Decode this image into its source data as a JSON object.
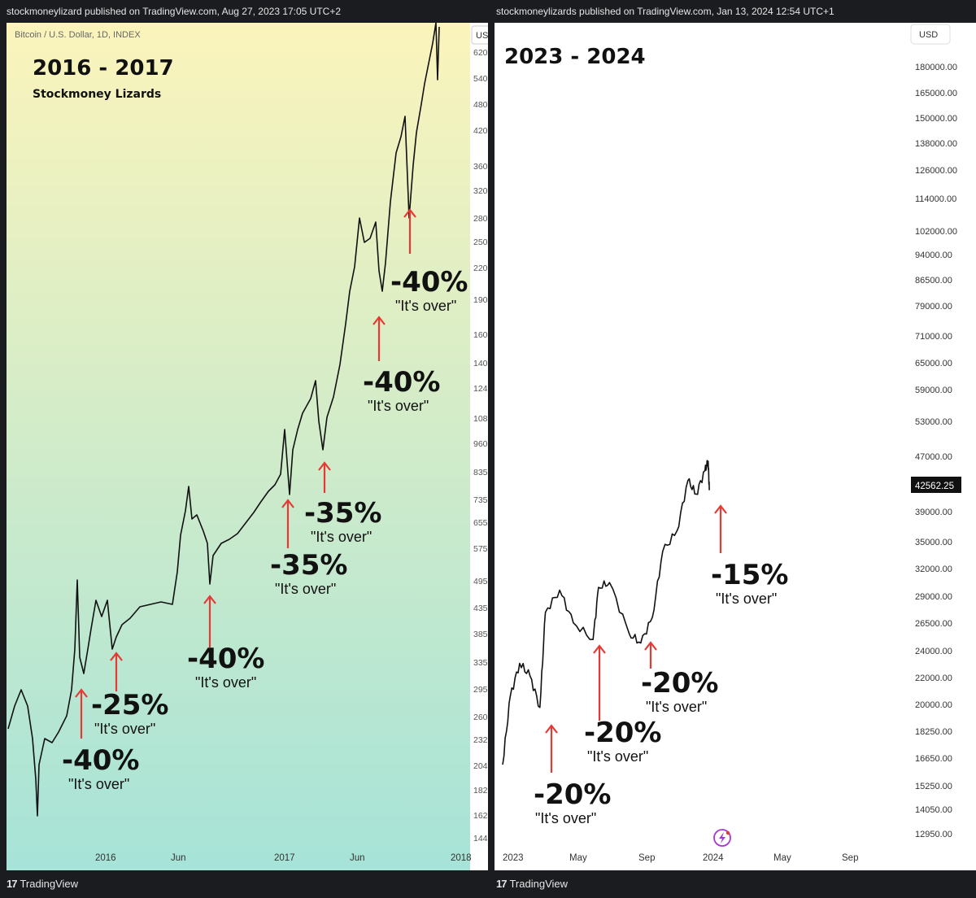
{
  "left": {
    "published": "stockmoneylizard published on TradingView.com, Aug 27, 2023 17:05 UTC+2",
    "symbol": "Bitcoin / U.S. Dollar, 1D, INDEX",
    "title": "2016 - 2017",
    "subtitle": "Stockmoney Lizards",
    "currency_btn": "USD",
    "footer": "TradingView"
  },
  "right": {
    "published": "stockmoneylizards published on TradingView.com, Jan 13, 2024 12:54 UTC+1",
    "title": "2023 - 2024",
    "currency_btn": "USD",
    "price_label": "42562.25",
    "footer": "TradingView"
  },
  "colors": {
    "arrow": "#e53935",
    "bg": "#ffffff",
    "gradient_top": "#fbf4bb",
    "gradient_bottom": "#a6e3d8",
    "frame": "#1b1c20"
  },
  "chart_data": [
    {
      "type": "line",
      "title": "2016 - 2017",
      "subtitle": "Stockmoney Lizards",
      "symbol": "Bitcoin / U.S. Dollar, 1D, INDEX",
      "yscale": "log",
      "ylabels": [
        "620",
        "540",
        "480",
        "420",
        "360",
        "320",
        "280",
        "250",
        "220",
        "190",
        "160",
        "140",
        "124",
        "108",
        "960",
        "835",
        "735",
        "655",
        "575",
        "495",
        "435",
        "385",
        "335",
        "295",
        "260",
        "232",
        "204",
        "182",
        "162",
        "144"
      ],
      "xlabels": [
        "2016",
        "Jun",
        "2017",
        "Jun",
        "2018"
      ],
      "grid": false,
      "annotations": [
        {
          "pct": "-40%",
          "text": "\"It's over\""
        },
        {
          "pct": "-25%",
          "text": "\"It's over\""
        },
        {
          "pct": "-40%",
          "text": "\"It's over\""
        },
        {
          "pct": "-35%",
          "text": "\"It's over\""
        },
        {
          "pct": "-35%",
          "text": "\"It's over\""
        },
        {
          "pct": "-40%",
          "text": "\"It's over\""
        },
        {
          "pct": "-40%",
          "text": "\"It's over\""
        }
      ]
    },
    {
      "type": "line",
      "title": "2023 - 2024",
      "yscale": "log",
      "ylabels": [
        "180000.00",
        "165000.00",
        "150000.00",
        "138000.00",
        "126000.00",
        "114000.00",
        "102000.00",
        "94000.00",
        "86500.00",
        "79000.00",
        "71000.00",
        "65000.00",
        "59000.00",
        "53000.00",
        "47000.00",
        "39000.00",
        "35000.00",
        "32000.00",
        "29000.00",
        "26500.00",
        "24000.00",
        "22000.00",
        "20000.00",
        "18250.00",
        "16650.00",
        "15250.00",
        "14050.00",
        "12950.00"
      ],
      "last_price": 42562.25,
      "xlabels": [
        "2023",
        "May",
        "Sep",
        "2024",
        "May",
        "Sep"
      ],
      "grid": false,
      "series": [
        {
          "x": [
            "2023-01-01",
            "2023-01-15",
            "2023-02-01",
            "2023-02-20",
            "2023-03-10",
            "2023-03-20",
            "2023-04-15",
            "2023-05-10",
            "2023-06-15",
            "2023-06-25",
            "2023-07-15",
            "2023-08-20",
            "2023-09-10",
            "2023-10-01",
            "2023-10-20",
            "2023-11-15",
            "2023-12-05",
            "2023-12-20",
            "2024-01-05",
            "2024-01-11",
            "2024-01-13"
          ],
          "values": [
            16600,
            21000,
            23500,
            22500,
            20200,
            28000,
            30200,
            27000,
            25500,
            30500,
            31000,
            26000,
            25200,
            27500,
            34500,
            37000,
            44000,
            42000,
            45500,
            47000,
            42562
          ]
        }
      ],
      "annotations": [
        {
          "pct": "-20%",
          "text": "\"It's over\""
        },
        {
          "pct": "-20%",
          "text": "\"It's over\""
        },
        {
          "pct": "-20%",
          "text": "\"It's over\""
        },
        {
          "pct": "-15%",
          "text": "\"It's over\""
        }
      ]
    }
  ]
}
